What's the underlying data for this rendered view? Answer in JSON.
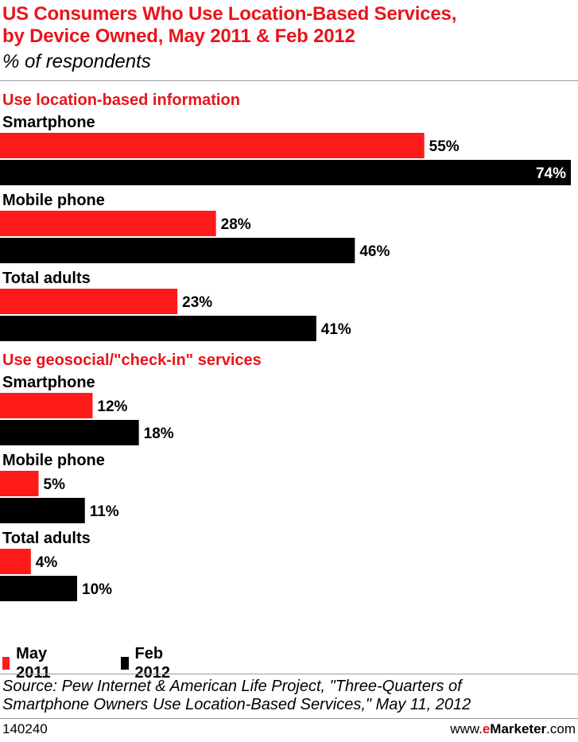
{
  "header": {
    "title_line1": "US Consumers Who Use Location-Based Services,",
    "title_line2": "by Device Owned, May 2011 & Feb 2012",
    "subtitle": "% of respondents"
  },
  "colors": {
    "accent": "#e8141c",
    "may_2011": "#ff1a1a",
    "feb_2012": "#000000",
    "rule": "#9a9a9a"
  },
  "chart_data": {
    "type": "bar",
    "orientation": "horizontal",
    "title": "US Consumers Who Use Location-Based Services, by Device Owned, May 2011 & Feb 2012",
    "subtitle": "% of respondents",
    "xlim": [
      0,
      74
    ],
    "grid": false,
    "legend_position": "bottom-left",
    "series_names": [
      "May 2011",
      "Feb 2012"
    ],
    "groups": [
      {
        "heading": "Use location-based information",
        "categories": [
          "Smartphone",
          "Mobile phone",
          "Total adults"
        ],
        "series": [
          {
            "name": "May 2011",
            "values": [
              55,
              28,
              23
            ],
            "labels": [
              "55%",
              "28%",
              "23%"
            ]
          },
          {
            "name": "Feb 2012",
            "values": [
              74,
              46,
              41
            ],
            "labels": [
              "74%",
              "46%",
              "41%"
            ]
          }
        ]
      },
      {
        "heading": "Use geosocial/\"check-in\" services",
        "categories": [
          "Smartphone",
          "Mobile phone",
          "Total adults"
        ],
        "series": [
          {
            "name": "May 2011",
            "values": [
              12,
              5,
              4
            ],
            "labels": [
              "12%",
              "5%",
              "4%"
            ]
          },
          {
            "name": "Feb 2012",
            "values": [
              18,
              11,
              10
            ],
            "labels": [
              "18%",
              "11%",
              "10%"
            ]
          }
        ]
      }
    ]
  },
  "legend": {
    "may_label": "May 2011",
    "feb_label": "Feb 2012"
  },
  "source": {
    "line1": "Source: Pew Internet & American Life Project, \"Three-Quarters of",
    "line2": "Smartphone Owners Use Location-Based Services,\" May 11, 2012"
  },
  "footer": {
    "id": "140240",
    "brand_prefix": "www.",
    "brand_e": "e",
    "brand_rest": "Marketer",
    "brand_suffix": ".com"
  }
}
